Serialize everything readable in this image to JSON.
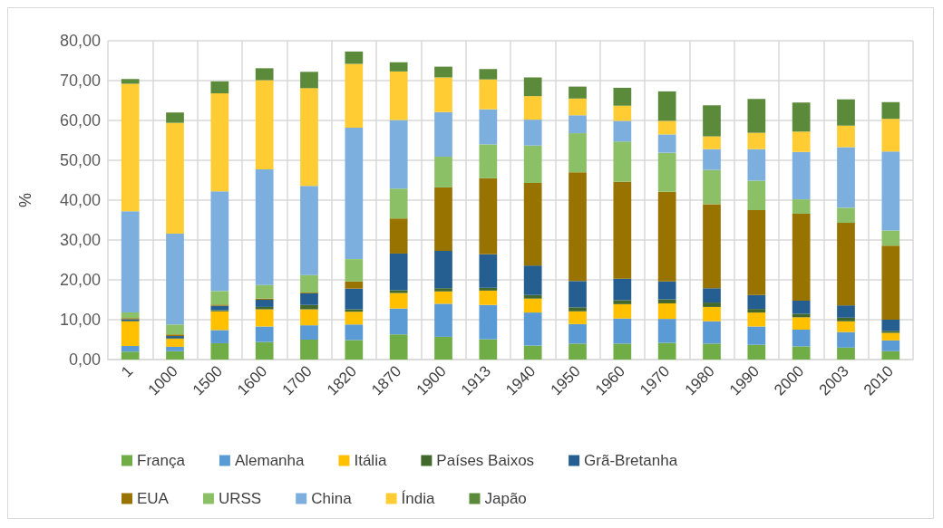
{
  "chart_data": {
    "type": "bar",
    "stacked": true,
    "ylabel": "%",
    "categories": [
      "1",
      "1000",
      "1500",
      "1600",
      "1700",
      "1820",
      "1870",
      "1900",
      "1913",
      "1940",
      "1950",
      "1960",
      "1970",
      "1980",
      "1990",
      "2000",
      "2003",
      "2010"
    ],
    "ylim": [
      0,
      80
    ],
    "yticks": [
      {
        "value": 0,
        "label": "0,00"
      },
      {
        "value": 10,
        "label": "10,00"
      },
      {
        "value": 20,
        "label": "20,00"
      },
      {
        "value": 30,
        "label": "30,00"
      },
      {
        "value": 40,
        "label": "40,00"
      },
      {
        "value": 50,
        "label": "50,00"
      },
      {
        "value": 60,
        "label": "60,00"
      },
      {
        "value": 70,
        "label": "70,00"
      },
      {
        "value": 80,
        "label": "80,00"
      }
    ],
    "grid": true,
    "legend": "bottom",
    "series": [
      {
        "name": "França",
        "color": "#70ad47",
        "values": [
          2.0,
          2.1,
          4.1,
          4.4,
          5.0,
          4.9,
          6.3,
          5.7,
          5.1,
          3.5,
          4.0,
          4.0,
          4.2,
          4.0,
          3.7,
          3.3,
          3.0,
          2.1
        ]
      },
      {
        "name": "Alemanha",
        "color": "#5b9bd5",
        "values": [
          1.4,
          1.1,
          3.3,
          3.9,
          3.6,
          3.9,
          6.5,
          8.3,
          8.6,
          8.3,
          4.9,
          6.3,
          6.0,
          5.6,
          4.6,
          4.2,
          3.9,
          2.7
        ]
      },
      {
        "name": "Itália",
        "color": "#ffc000",
        "values": [
          6.2,
          2.0,
          4.7,
          4.3,
          4.0,
          3.2,
          3.9,
          3.1,
          3.6,
          3.5,
          3.2,
          3.6,
          3.9,
          3.6,
          3.5,
          3.1,
          2.7,
          1.9
        ]
      },
      {
        "name": "Países Baixos",
        "color": "#43682b",
        "values": [
          0.2,
          0.2,
          0.3,
          0.6,
          1.1,
          0.6,
          0.7,
          0.8,
          0.7,
          0.9,
          1.0,
          1.0,
          1.0,
          1.1,
          0.9,
          0.9,
          0.9,
          0.5
        ]
      },
      {
        "name": "Grã-Bretanha",
        "color": "#255e91",
        "values": [
          0.3,
          0.5,
          1.1,
          1.8,
          2.9,
          5.2,
          9.2,
          9.4,
          8.4,
          7.4,
          6.6,
          5.4,
          4.5,
          3.6,
          3.5,
          3.3,
          3.1,
          2.8
        ]
      },
      {
        "name": "EUA",
        "color": "#997300",
        "values": [
          0.3,
          0.4,
          0.3,
          0.3,
          0.2,
          1.8,
          8.8,
          15.9,
          19.1,
          20.7,
          27.3,
          24.3,
          22.5,
          21.1,
          21.3,
          21.8,
          20.7,
          18.6
        ]
      },
      {
        "name": "URSS",
        "color": "#8cc066",
        "values": [
          1.4,
          2.5,
          3.4,
          3.4,
          4.4,
          5.6,
          7.5,
          7.7,
          8.5,
          9.4,
          9.8,
          10.1,
          9.8,
          8.6,
          7.4,
          3.6,
          3.8,
          3.8
        ]
      },
      {
        "name": "China",
        "color": "#7cafdd",
        "values": [
          25.4,
          22.8,
          25.0,
          29.0,
          22.4,
          33.0,
          17.2,
          11.2,
          8.8,
          6.5,
          4.5,
          5.2,
          4.6,
          5.2,
          7.9,
          11.9,
          15.2,
          19.8
        ]
      },
      {
        "name": "Índia",
        "color": "#ffcd33",
        "values": [
          32.0,
          27.8,
          24.6,
          22.4,
          24.5,
          16.0,
          12.2,
          8.7,
          7.5,
          5.9,
          4.2,
          3.8,
          3.4,
          3.2,
          4.1,
          5.1,
          5.4,
          8.2
        ]
      },
      {
        "name": "Japão",
        "color": "#5b8a3a",
        "values": [
          1.2,
          2.6,
          3.0,
          3.0,
          4.1,
          3.1,
          2.3,
          2.7,
          2.6,
          4.7,
          3.0,
          4.5,
          7.4,
          7.8,
          8.5,
          7.3,
          6.6,
          4.2
        ]
      }
    ]
  }
}
